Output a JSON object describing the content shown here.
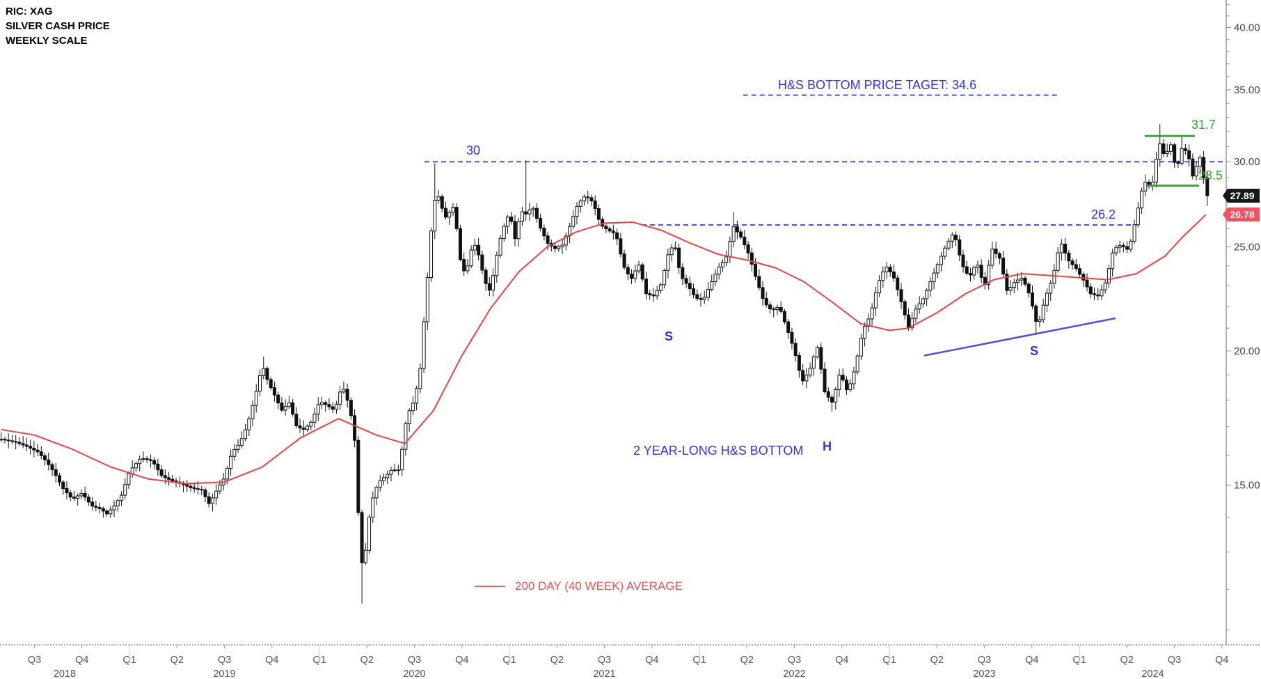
{
  "title": {
    "line1": "RIC: XAG",
    "line2": "SILVER CASH PRICE",
    "line3": "WEEKLY SCALE"
  },
  "legend": {
    "label": "200 DAY (40 WEEK) AVERAGE"
  },
  "price_tags": {
    "last_close": "27.89",
    "moving_average": "26.78"
  },
  "colors": {
    "candle_up_fill": "#ffffff",
    "candle_down_fill": "#111111",
    "candle_border": "#111111",
    "ma_line": "#ef4040",
    "legend_red": "#f05050",
    "drawing_blue": "#4d4df0",
    "text_blue": "#3232ee",
    "green": "#3aa53a",
    "axis_text": "#444444",
    "axis_line": "#9a9a9a",
    "tag_last_bg": "#17181d",
    "tag_ma_bg": "#f7525f"
  },
  "chart_data": {
    "type": "candlestick",
    "symbol": "XAG",
    "description": "Silver cash price, weekly bars, log-scaled price axis, with 40-week moving average and head-and-shoulders bottom annotations",
    "timeframe": "weekly",
    "y_axis": {
      "scale": "log",
      "tick_labels": [
        "40.00",
        "35.00",
        "30.00",
        "25.00",
        "20.00",
        "15.00"
      ],
      "major_ticks": [
        40,
        35,
        30,
        25,
        20,
        15
      ],
      "minor_tick_step": 1,
      "visible_range": [
        10.6,
        42.4
      ]
    },
    "x_axis": {
      "quarter_labels": [
        "Q1",
        "Q2",
        "Q3",
        "Q4"
      ],
      "first_quarter": 2018.5,
      "last_quarter": 2024.75,
      "years": [
        2018,
        2019,
        2020,
        2021,
        2022,
        2023,
        2024
      ]
    },
    "weeks_per_year": 52.14,
    "start_time": 2018.325,
    "end_time": 2024.665,
    "price_anchors": [
      [
        2018.325,
        16.55
      ],
      [
        2018.4,
        16.45
      ],
      [
        2018.46,
        16.3
      ],
      [
        2018.52,
        16.1
      ],
      [
        2018.56,
        15.8
      ],
      [
        2018.6,
        15.45
      ],
      [
        2018.65,
        14.9
      ],
      [
        2018.7,
        14.55
      ],
      [
        2018.75,
        14.75
      ],
      [
        2018.8,
        14.35
      ],
      [
        2018.85,
        14.25
      ],
      [
        2018.88,
        14.1
      ],
      [
        2018.92,
        14.35
      ],
      [
        2018.96,
        14.7
      ],
      [
        2019.0,
        15.45
      ],
      [
        2019.06,
        15.9
      ],
      [
        2019.12,
        15.8
      ],
      [
        2019.17,
        15.3
      ],
      [
        2019.22,
        15.15
      ],
      [
        2019.27,
        15.05
      ],
      [
        2019.33,
        14.9
      ],
      [
        2019.38,
        14.85
      ],
      [
        2019.42,
        14.4
      ],
      [
        2019.46,
        14.85
      ],
      [
        2019.5,
        15.25
      ],
      [
        2019.54,
        16.1
      ],
      [
        2019.58,
        16.4
      ],
      [
        2019.62,
        17.05
      ],
      [
        2019.66,
        18.1
      ],
      [
        2019.7,
        19.4
      ],
      [
        2019.73,
        18.7
      ],
      [
        2019.77,
        18.1
      ],
      [
        2019.8,
        17.6
      ],
      [
        2019.84,
        17.9
      ],
      [
        2019.88,
        17.0
      ],
      [
        2019.92,
        16.9
      ],
      [
        2019.96,
        17.2
      ],
      [
        2020.0,
        17.95
      ],
      [
        2020.04,
        17.8
      ],
      [
        2020.08,
        17.6
      ],
      [
        2020.12,
        18.6
      ],
      [
        2020.16,
        17.7
      ],
      [
        2020.19,
        16.3
      ],
      [
        2020.215,
        12.6
      ],
      [
        2020.24,
        12.9
      ],
      [
        2020.27,
        14.4
      ],
      [
        2020.31,
        15.1
      ],
      [
        2020.35,
        15.3
      ],
      [
        2020.38,
        15.5
      ],
      [
        2020.42,
        15.5
      ],
      [
        2020.46,
        17.4
      ],
      [
        2020.5,
        18.0
      ],
      [
        2020.53,
        19.2
      ],
      [
        2020.565,
        22.9
      ],
      [
        2020.59,
        26.1
      ],
      [
        2020.615,
        28.3
      ],
      [
        2020.64,
        27.3
      ],
      [
        2020.67,
        26.5
      ],
      [
        2020.7,
        27.4
      ],
      [
        2020.72,
        26.2
      ],
      [
        2020.75,
        23.6
      ],
      [
        2020.78,
        24.0
      ],
      [
        2020.81,
        25.3
      ],
      [
        2020.84,
        24.5
      ],
      [
        2020.87,
        23.2
      ],
      [
        2020.9,
        22.7
      ],
      [
        2020.93,
        24.4
      ],
      [
        2020.96,
        25.8
      ],
      [
        2021.0,
        26.9
      ],
      [
        2021.03,
        25.4
      ],
      [
        2021.06,
        27.0
      ],
      [
        2021.09,
        26.8
      ],
      [
        2021.12,
        27.3
      ],
      [
        2021.16,
        26.1
      ],
      [
        2021.2,
        25.2
      ],
      [
        2021.24,
        24.9
      ],
      [
        2021.28,
        25.1
      ],
      [
        2021.32,
        26.2
      ],
      [
        2021.36,
        27.4
      ],
      [
        2021.4,
        27.9
      ],
      [
        2021.44,
        27.5
      ],
      [
        2021.48,
        26.2
      ],
      [
        2021.52,
        25.9
      ],
      [
        2021.56,
        25.7
      ],
      [
        2021.6,
        24.0
      ],
      [
        2021.64,
        23.3
      ],
      [
        2021.68,
        24.1
      ],
      [
        2021.72,
        22.6
      ],
      [
        2021.76,
        22.5
      ],
      [
        2021.8,
        23.1
      ],
      [
        2021.84,
        24.8
      ],
      [
        2021.87,
        25.1
      ],
      [
        2021.9,
        23.5
      ],
      [
        2021.94,
        23.0
      ],
      [
        2021.98,
        22.4
      ],
      [
        2022.02,
        22.3
      ],
      [
        2022.06,
        23.1
      ],
      [
        2022.1,
        23.9
      ],
      [
        2022.14,
        24.4
      ],
      [
        2022.18,
        26.1
      ],
      [
        2022.22,
        25.5
      ],
      [
        2022.26,
        24.6
      ],
      [
        2022.3,
        23.3
      ],
      [
        2022.34,
        22.2
      ],
      [
        2022.38,
        21.8
      ],
      [
        2022.42,
        22.0
      ],
      [
        2022.46,
        21.0
      ],
      [
        2022.5,
        20.0
      ],
      [
        2022.54,
        18.7
      ],
      [
        2022.58,
        19.2
      ],
      [
        2022.62,
        20.2
      ],
      [
        2022.66,
        18.3
      ],
      [
        2022.7,
        17.9
      ],
      [
        2022.74,
        19.1
      ],
      [
        2022.78,
        18.3
      ],
      [
        2022.82,
        19.3
      ],
      [
        2022.86,
        20.9
      ],
      [
        2022.9,
        21.6
      ],
      [
        2022.94,
        23.1
      ],
      [
        2022.98,
        24.0
      ],
      [
        2023.02,
        23.5
      ],
      [
        2023.06,
        22.3
      ],
      [
        2023.1,
        21.0
      ],
      [
        2023.14,
        21.9
      ],
      [
        2023.18,
        22.4
      ],
      [
        2023.22,
        23.3
      ],
      [
        2023.26,
        24.2
      ],
      [
        2023.3,
        25.1
      ],
      [
        2023.34,
        25.8
      ],
      [
        2023.38,
        24.1
      ],
      [
        2023.42,
        23.4
      ],
      [
        2023.46,
        24.2
      ],
      [
        2023.5,
        22.9
      ],
      [
        2023.54,
        24.9
      ],
      [
        2023.58,
        24.4
      ],
      [
        2023.62,
        22.7
      ],
      [
        2023.66,
        23.2
      ],
      [
        2023.7,
        23.4
      ],
      [
        2023.74,
        22.5
      ],
      [
        2023.78,
        21.0
      ],
      [
        2023.82,
        22.4
      ],
      [
        2023.86,
        23.4
      ],
      [
        2023.9,
        25.3
      ],
      [
        2023.94,
        24.3
      ],
      [
        2023.98,
        23.9
      ],
      [
        2024.02,
        23.3
      ],
      [
        2024.06,
        22.6
      ],
      [
        2024.1,
        22.5
      ],
      [
        2024.14,
        23.2
      ],
      [
        2024.18,
        24.9
      ],
      [
        2024.22,
        25.1
      ],
      [
        2024.26,
        24.8
      ],
      [
        2024.3,
        26.7
      ],
      [
        2024.34,
        28.8
      ],
      [
        2024.38,
        28.3
      ],
      [
        2024.42,
        31.3
      ],
      [
        2024.45,
        30.3
      ],
      [
        2024.48,
        31.2
      ],
      [
        2024.51,
        29.4
      ],
      [
        2024.54,
        30.9
      ],
      [
        2024.57,
        30.6
      ],
      [
        2024.6,
        28.9
      ],
      [
        2024.62,
        29.9
      ],
      [
        2024.64,
        30.4
      ],
      [
        2024.665,
        27.89
      ]
    ],
    "wick_spikes": [
      [
        2019.7,
        "h",
        19.75
      ],
      [
        2020.215,
        "l",
        11.64
      ],
      [
        2020.615,
        "h",
        29.9
      ],
      [
        2021.09,
        "h",
        30.08
      ],
      [
        2022.18,
        "h",
        26.94
      ],
      [
        2022.7,
        "l",
        17.56
      ],
      [
        2023.78,
        "l",
        20.69
      ],
      [
        2024.42,
        "h",
        32.52
      ],
      [
        2024.54,
        "h",
        31.76
      ],
      [
        2024.665,
        "l",
        27.3
      ]
    ],
    "ma_anchors": [
      [
        2018.325,
        16.9
      ],
      [
        2018.5,
        16.7
      ],
      [
        2018.7,
        16.2
      ],
      [
        2018.9,
        15.6
      ],
      [
        2019.1,
        15.2
      ],
      [
        2019.3,
        15.05
      ],
      [
        2019.5,
        15.1
      ],
      [
        2019.7,
        15.6
      ],
      [
        2019.9,
        16.6
      ],
      [
        2020.1,
        17.3
      ],
      [
        2020.3,
        16.7
      ],
      [
        2020.45,
        16.4
      ],
      [
        2020.6,
        17.6
      ],
      [
        2020.75,
        19.8
      ],
      [
        2020.9,
        21.9
      ],
      [
        2021.05,
        23.7
      ],
      [
        2021.2,
        25.0
      ],
      [
        2021.35,
        25.8
      ],
      [
        2021.5,
        26.3
      ],
      [
        2021.65,
        26.35
      ],
      [
        2021.8,
        25.9
      ],
      [
        2021.95,
        25.2
      ],
      [
        2022.1,
        24.6
      ],
      [
        2022.25,
        24.3
      ],
      [
        2022.4,
        23.9
      ],
      [
        2022.55,
        23.2
      ],
      [
        2022.7,
        22.2
      ],
      [
        2022.85,
        21.2
      ],
      [
        2023.0,
        20.9
      ],
      [
        2023.1,
        21.0
      ],
      [
        2023.25,
        21.7
      ],
      [
        2023.4,
        22.6
      ],
      [
        2023.55,
        23.3
      ],
      [
        2023.7,
        23.6
      ],
      [
        2023.85,
        23.5
      ],
      [
        2024.0,
        23.4
      ],
      [
        2024.15,
        23.3
      ],
      [
        2024.3,
        23.6
      ],
      [
        2024.45,
        24.5
      ],
      [
        2024.55,
        25.6
      ],
      [
        2024.62,
        26.3
      ],
      [
        2024.665,
        26.78
      ]
    ],
    "last_close": 27.89,
    "ma_last_value": 26.78,
    "annotations": {
      "target_line": {
        "label": "H&S BOTTOM PRICE TAGET: 34.6",
        "price": 34.6,
        "t1": 2022.23,
        "t2": 2023.9,
        "style": "dashed-blue"
      },
      "res_30": {
        "label": "30",
        "price": 30.0,
        "t1": 2020.553,
        "t2": "right-axis",
        "style": "dashed-blue"
      },
      "sup_262": {
        "label": "26.2",
        "price": 26.2,
        "t1": 2021.696,
        "t2": 2024.304,
        "style": "dashed-blue"
      },
      "green_high": {
        "label": "31.7",
        "price": 31.7,
        "t1": 2024.344,
        "t2": 2024.608,
        "style": "solid-green"
      },
      "green_low": {
        "label": "28.5",
        "price": 28.5,
        "t1": 2024.355,
        "t2": 2024.63,
        "style": "solid-green"
      },
      "neckline": {
        "t1": 2023.183,
        "p1": 19.8,
        "t2": 2024.19,
        "p2": 21.45,
        "style": "solid-blue"
      },
      "shoulder_left": {
        "label": "S"
      },
      "head": {
        "label": "H"
      },
      "shoulder_right": {
        "label": "S"
      },
      "pattern_text": {
        "label": "2 YEAR-LONG H&S BOTTOM"
      }
    }
  }
}
